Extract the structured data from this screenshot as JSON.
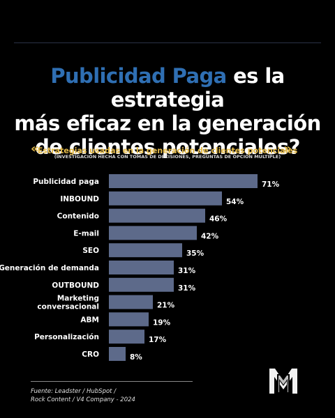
{
  "header": {
    "title_accent": "Publicidad Paga",
    "title_line1_rest": " es la estrategia",
    "title_line2": "más eficaz en la generación",
    "title_line3": "de clientes potenciales?"
  },
  "chart_data": {
    "type": "bar",
    "orientation": "horizontal",
    "title": "Estrategias usadas en la generación de clientes potenciales",
    "subtitle": "(INVESTIGACIÓN HECHA CON TOMAS DE DECISIONES, PREGUNTAS DE OPCIÓN MULTIPLE)",
    "categories": [
      "Publicidad paga",
      "INBOUND",
      "Contenido",
      "E-mail",
      "SEO",
      "Generación de demanda",
      "OUTBOUND",
      "Marketing conversacional",
      "ABM",
      "Personalización",
      "CRO"
    ],
    "values": [
      71,
      54,
      46,
      42,
      35,
      31,
      31,
      21,
      19,
      17,
      8
    ],
    "value_labels": [
      "71%",
      "54%",
      "46%",
      "42%",
      "35%",
      "31%",
      "31%",
      "21%",
      "19%",
      "17%",
      "8%"
    ],
    "xlim": [
      0,
      100
    ],
    "grid": false,
    "bar_color": "#5d6a8a"
  },
  "footer": {
    "source_line1": "Fuente: Leadster / HubSpot /",
    "source_line2": "Rock Content / V4 Company - 2024"
  },
  "colors": {
    "accent": "#2f6fb3",
    "gold": "#e2b94a",
    "background": "#000000"
  },
  "icons": {
    "logo": "monogram-m-logo",
    "chevron_left": "double-chevron-left-icon",
    "chevron_right": "double-chevron-right-icon"
  }
}
